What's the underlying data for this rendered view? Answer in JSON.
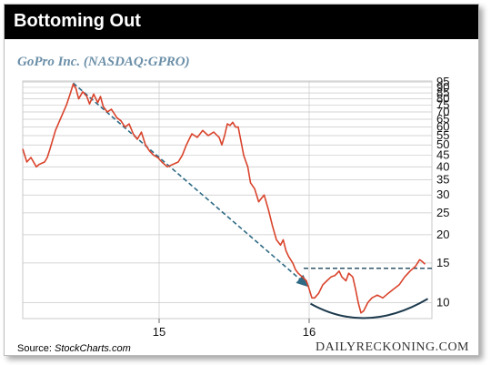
{
  "header": {
    "title": "Bottoming Out"
  },
  "chart": {
    "subtitle": "GoPro Inc. (NASDAQ:GPRO)"
  },
  "footer": {
    "source_label": "Source:",
    "source_name": "StockCharts.com",
    "brand": "DAILYRECKONING.COM"
  },
  "colors": {
    "price_line": "#d9432b",
    "trend_dashed": "#2e6a84",
    "resistance_dashed": "#2e5569",
    "bottom_curve": "#1c3a4d",
    "subtitle": "#6b8fa8",
    "header_bg": "#000000",
    "grid": "#c8c8c8"
  },
  "chart_data": {
    "type": "line",
    "title": "GoPro Inc. (NASDAQ:GPRO)",
    "yscale": "log",
    "ylim": [
      8.5,
      96
    ],
    "yticks": [
      10,
      15,
      20,
      25,
      30,
      35,
      40,
      45,
      50,
      55,
      60,
      65,
      70,
      75,
      80,
      85,
      90,
      95
    ],
    "x_ticks": [
      {
        "label": "15",
        "x": 5.0
      },
      {
        "label": "16",
        "x": 10.5
      }
    ],
    "xlim": [
      0,
      15
    ],
    "grid": true,
    "series": [
      {
        "points": [
          [
            0.0,
            48
          ],
          [
            0.15,
            42
          ],
          [
            0.3,
            44
          ],
          [
            0.5,
            40
          ],
          [
            0.6,
            41
          ],
          [
            0.8,
            42
          ],
          [
            0.9,
            44
          ],
          [
            1.0,
            48
          ],
          [
            1.2,
            58
          ],
          [
            1.4,
            66
          ],
          [
            1.6,
            75
          ],
          [
            1.75,
            85
          ],
          [
            1.85,
            93
          ],
          [
            1.95,
            89
          ],
          [
            2.05,
            80
          ],
          [
            2.2,
            86
          ],
          [
            2.35,
            82
          ],
          [
            2.45,
            76
          ],
          [
            2.6,
            84
          ],
          [
            2.75,
            77
          ],
          [
            2.85,
            82
          ],
          [
            2.95,
            74
          ],
          [
            3.1,
            70
          ],
          [
            3.25,
            72
          ],
          [
            3.45,
            66
          ],
          [
            3.6,
            64
          ],
          [
            3.75,
            60
          ],
          [
            3.9,
            62
          ],
          [
            4.05,
            56
          ],
          [
            4.2,
            53
          ],
          [
            4.35,
            57
          ],
          [
            4.5,
            50
          ],
          [
            4.65,
            47
          ],
          [
            4.8,
            45
          ],
          [
            4.95,
            44
          ],
          [
            5.1,
            42
          ],
          [
            5.3,
            40
          ],
          [
            5.5,
            41
          ],
          [
            5.7,
            42
          ],
          [
            5.85,
            45
          ],
          [
            6.0,
            50
          ],
          [
            6.2,
            56
          ],
          [
            6.4,
            54
          ],
          [
            6.6,
            58
          ],
          [
            6.8,
            55
          ],
          [
            7.0,
            57
          ],
          [
            7.2,
            54
          ],
          [
            7.3,
            50
          ],
          [
            7.4,
            55
          ],
          [
            7.5,
            62
          ],
          [
            7.6,
            61
          ],
          [
            7.7,
            63
          ],
          [
            7.8,
            60
          ],
          [
            7.9,
            60
          ],
          [
            8.0,
            52
          ],
          [
            8.1,
            45
          ],
          [
            8.25,
            40
          ],
          [
            8.35,
            34
          ],
          [
            8.5,
            32
          ],
          [
            8.65,
            28
          ],
          [
            8.75,
            29
          ],
          [
            8.85,
            30
          ],
          [
            9.0,
            26
          ],
          [
            9.15,
            22
          ],
          [
            9.3,
            19
          ],
          [
            9.45,
            18
          ],
          [
            9.55,
            19
          ],
          [
            9.65,
            17
          ],
          [
            9.75,
            16
          ],
          [
            9.9,
            15
          ],
          [
            10.0,
            14
          ],
          [
            10.1,
            13.5
          ],
          [
            10.25,
            13
          ],
          [
            10.4,
            12.5
          ],
          [
            10.5,
            11.5
          ],
          [
            10.6,
            10.5
          ],
          [
            10.7,
            10.5
          ],
          [
            10.85,
            11
          ],
          [
            11.0,
            12
          ],
          [
            11.15,
            12.5
          ],
          [
            11.3,
            13
          ],
          [
            11.45,
            13.2
          ],
          [
            11.6,
            13.8
          ],
          [
            11.7,
            13
          ],
          [
            11.85,
            12.5
          ],
          [
            11.95,
            13.5
          ],
          [
            12.1,
            13.0
          ],
          [
            12.2,
            11.5
          ],
          [
            12.3,
            10
          ],
          [
            12.4,
            9.0
          ],
          [
            12.5,
            9.2
          ],
          [
            12.65,
            10.0
          ],
          [
            12.8,
            10.5
          ],
          [
            13.0,
            10.8
          ],
          [
            13.2,
            10.5
          ],
          [
            13.4,
            11.0
          ],
          [
            13.6,
            11.5
          ],
          [
            13.8,
            12.0
          ],
          [
            14.0,
            13.0
          ],
          [
            14.2,
            13.8
          ],
          [
            14.4,
            14.5
          ],
          [
            14.55,
            15.5
          ],
          [
            14.65,
            15.2
          ],
          [
            14.75,
            14.8
          ]
        ]
      }
    ]
  }
}
